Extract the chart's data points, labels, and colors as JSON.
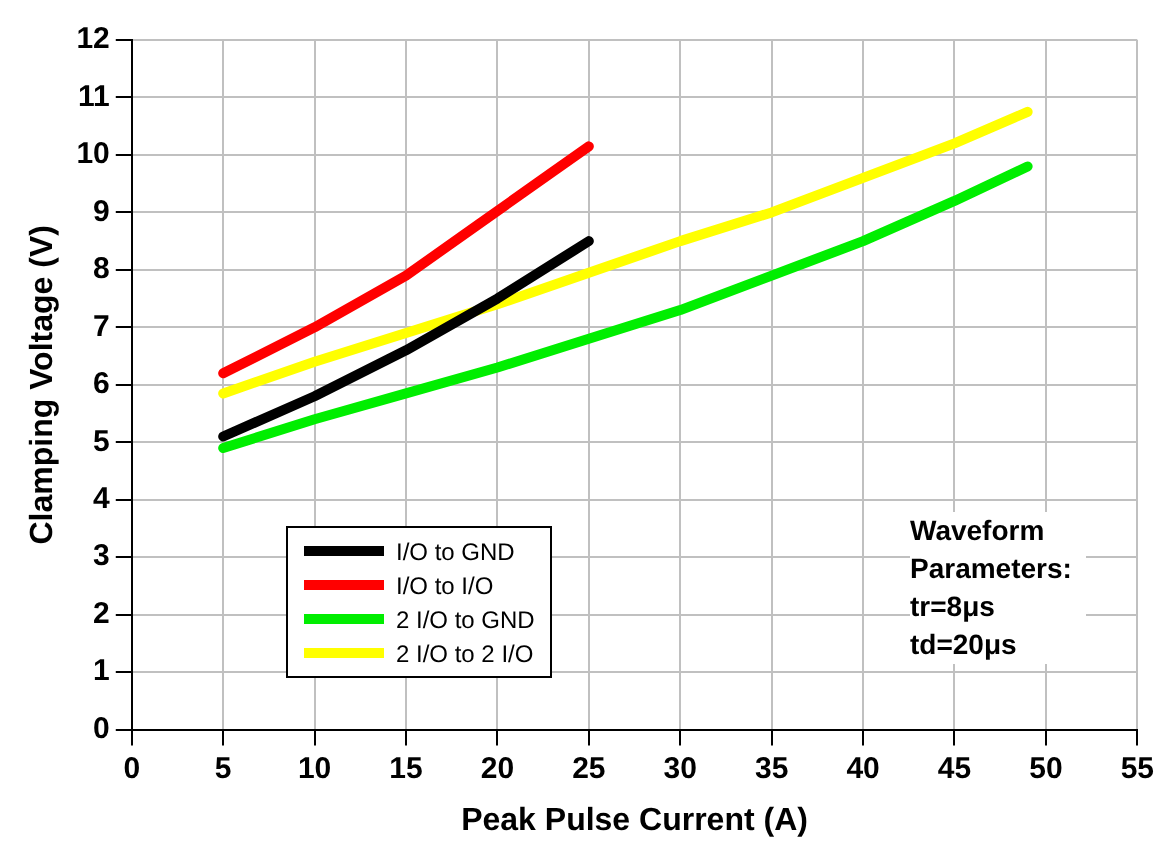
{
  "chart_data": {
    "type": "line",
    "xlabel": "Peak Pulse Current (A)",
    "ylabel": "Clamping Voltage (V)",
    "xlim": [
      0,
      55
    ],
    "xticks": [
      0,
      5,
      10,
      15,
      20,
      25,
      30,
      35,
      40,
      45,
      50,
      55
    ],
    "ylim": [
      0,
      12
    ],
    "yticks": [
      0,
      1,
      2,
      3,
      4,
      5,
      6,
      7,
      8,
      9,
      10,
      11,
      12
    ],
    "grid": true,
    "legend": "bottom left",
    "marker": "none",
    "line_style": "solid",
    "annotations": [
      "Waveform Parameters: tr=8μs td=20μs"
    ],
    "series": [
      {
        "name": "I/O to GND",
        "color": "#000000",
        "x": [
          5,
          10,
          15,
          20,
          25
        ],
        "values": [
          5.1,
          5.8,
          6.6,
          7.5,
          8.5
        ]
      },
      {
        "name": "I/O to I/O",
        "color": "#ff0000",
        "x": [
          5,
          10,
          15,
          19,
          23,
          25
        ],
        "values": [
          6.2,
          7.0,
          7.9,
          8.8,
          9.7,
          10.15
        ]
      },
      {
        "name": "2 I/O to GND",
        "color": "#00ee00",
        "x": [
          5,
          10,
          15,
          20,
          25,
          30,
          35,
          40,
          45,
          49
        ],
        "values": [
          4.9,
          5.4,
          5.85,
          6.3,
          6.8,
          7.3,
          7.9,
          8.5,
          9.2,
          9.8
        ]
      },
      {
        "name": "2 I/O to 2 I/O",
        "color": "#ffff00",
        "x": [
          5,
          10,
          15,
          20,
          25,
          30,
          35,
          40,
          45,
          49
        ],
        "values": [
          5.85,
          6.4,
          6.9,
          7.4,
          7.95,
          8.5,
          9.0,
          9.6,
          10.2,
          10.75
        ]
      }
    ]
  }
}
